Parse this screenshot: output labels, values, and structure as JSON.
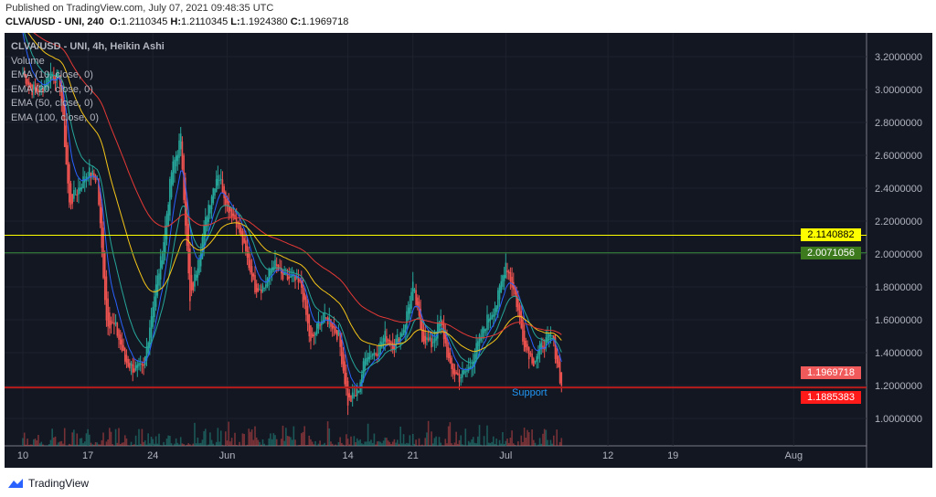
{
  "header": {
    "published": "Published on TradingView.com, July 07, 2021 09:48:35 UTC",
    "symbol": "CLVA/USD - UNI, 240",
    "o_label": "O:",
    "o": "1.2110345",
    "h_label": "H:",
    "h": "1.2110345",
    "l_label": "L:",
    "l": "1.1924380",
    "c_label": "C:",
    "c": "1.1969718"
  },
  "legend": [
    "CLVA/USD - UNI, 4h, Heikin Ashi",
    "Volume",
    "EMA (10, close, 0)",
    "EMA (20, close, 0)",
    "EMA (50, close, 0)",
    "EMA (100, close, 0)"
  ],
  "annotation": "Support",
  "price_labels": {
    "yellow": "2.1140882",
    "green": "2.0071056",
    "last": "1.1969718",
    "support": "1.1885383"
  },
  "footer": {
    "brand": "TradingView"
  },
  "colors": {
    "up": "#26a69a",
    "down": "#ef5350",
    "ema10": "#2962ff",
    "ema20": "#26a69a",
    "ema50": "#f5c518",
    "ema100": "#e53935",
    "yellow": "#ffff00",
    "green": "#388e3c",
    "support": "#b71c1c"
  },
  "chart_data": {
    "type": "candlestick",
    "title": "CLVA/USD - UNI, 4h, Heikin Ashi",
    "start_date": "2021-05-10",
    "daily_close_approx": [
      3.1,
      3.0,
      3.0,
      3.1,
      3.05,
      2.3,
      2.4,
      2.5,
      2.45,
      1.6,
      1.55,
      1.35,
      1.3,
      1.3,
      1.7,
      2.0,
      2.5,
      2.7,
      1.7,
      2.0,
      2.3,
      2.5,
      2.3,
      2.2,
      2.0,
      1.8,
      1.8,
      1.95,
      1.85,
      1.85,
      1.8,
      1.45,
      1.6,
      1.6,
      1.5,
      1.1,
      1.15,
      1.4,
      1.4,
      1.5,
      1.45,
      1.55,
      1.8,
      1.5,
      1.45,
      1.6,
      1.3,
      1.25,
      1.3,
      1.45,
      1.6,
      1.7,
      1.95,
      1.75,
      1.45,
      1.35,
      1.45,
      1.5,
      1.2
    ],
    "ylim": [
      0.8,
      3.35
    ],
    "y_ticks": [
      "3.2000000",
      "3.0000000",
      "2.8000000",
      "2.6000000",
      "2.4000000",
      "2.2000000",
      "2.0000000",
      "1.8000000",
      "1.6000000",
      "1.4000000",
      "1.2000000",
      "1.0000000"
    ],
    "x_ticks": [
      {
        "label": "10",
        "day": 0
      },
      {
        "label": "17",
        "day": 7
      },
      {
        "label": "24",
        "day": 14
      },
      {
        "label": "Jun",
        "day": 22
      },
      {
        "label": "14",
        "day": 35
      },
      {
        "label": "21",
        "day": 42
      },
      {
        "label": "Jul",
        "day": 52
      },
      {
        "label": "12",
        "day": 63
      },
      {
        "label": "19",
        "day": 70
      },
      {
        "label": "Aug",
        "day": 83
      }
    ],
    "hlines": [
      {
        "value": 2.1140882,
        "color": "yellow"
      },
      {
        "value": 2.0071056,
        "color": "green"
      },
      {
        "value": 1.1885383,
        "color": "support"
      }
    ]
  }
}
